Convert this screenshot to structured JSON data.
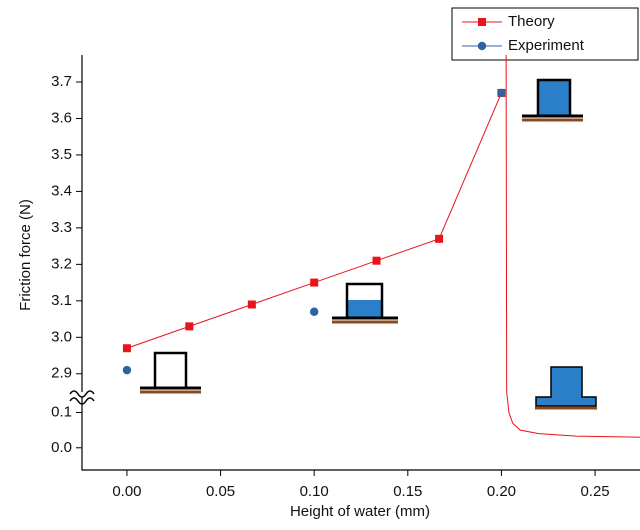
{
  "chart_data": {
    "type": "line",
    "xlabel": "Height of water (mm)",
    "ylabel": "Friction force (N)",
    "xlim": [
      -0.024,
      0.274
    ],
    "xticks": [
      {
        "value": 0,
        "label": "0.00"
      },
      {
        "value": 0.05,
        "label": "0.05"
      },
      {
        "value": 0.1,
        "label": "0.10"
      },
      {
        "value": 0.15,
        "label": "0.15"
      },
      {
        "value": 0.2,
        "label": "0.20"
      },
      {
        "value": 0.25,
        "label": "0.25"
      }
    ],
    "y_segments": [
      {
        "ylim": [
          2.85,
          3.774
        ],
        "yticks": [
          2.9,
          {
            "value": 3,
            "label": "3.0"
          },
          3.1,
          3.2,
          3.3,
          3.4,
          3.5,
          3.6,
          3.7
        ]
      },
      {
        "ylim": [
          -0.063,
          0.144
        ],
        "yticks": [
          {
            "value": 0,
            "label": "0.0"
          },
          0.1
        ]
      }
    ],
    "series": [
      {
        "name": "Theory",
        "color": "#e8141c",
        "marker": "square",
        "x": [
          0,
          0.0333,
          0.0667,
          0.1,
          0.1333,
          0.1667,
          0.2
        ],
        "values": [
          2.97,
          3.03,
          3.09,
          3.15,
          3.21,
          3.27,
          3.67
        ]
      },
      {
        "name": "Experiment",
        "color": "#2e62a0",
        "marker": "circle",
        "x": [
          0,
          0.1,
          0.2
        ],
        "values": [
          2.91,
          3.07,
          3.67
        ]
      }
    ],
    "curve": {
      "color": "#e8141c",
      "x": [
        0.2025,
        0.2028,
        0.2032,
        0.204,
        0.206,
        0.21,
        0.22,
        0.24,
        0.274
      ],
      "values": [
        3.774,
        2.85,
        0.14,
        0.1,
        0.07,
        0.05,
        0.04,
        0.033,
        0.03
      ]
    },
    "legend": "top-right"
  }
}
